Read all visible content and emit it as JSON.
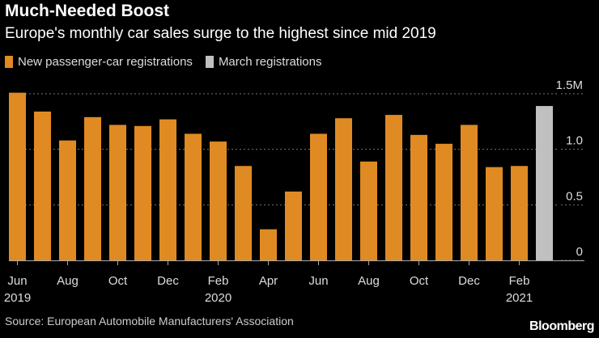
{
  "chart_data": {
    "type": "bar",
    "title": "Much-Needed Boost",
    "subtitle": "Europe's monthly car sales surge to the highest since mid 2019",
    "legend": [
      {
        "label": "New passenger-car registrations",
        "color": "#e08a23"
      },
      {
        "label": "March registrations",
        "color": "#c0c0c0"
      }
    ],
    "categories": [
      "Jun 2019",
      "Jul 2019",
      "Aug 2019",
      "Sep 2019",
      "Oct 2019",
      "Nov 2019",
      "Dec 2019",
      "Jan 2020",
      "Feb 2020",
      "Mar 2020",
      "Apr 2020",
      "May 2020",
      "Jun 2020",
      "Jul 2020",
      "Aug 2020",
      "Sep 2020",
      "Oct 2020",
      "Nov 2020",
      "Dec 2020",
      "Jan 2021",
      "Feb 2021",
      "Mar 2021"
    ],
    "values": [
      1.51,
      1.34,
      1.08,
      1.29,
      1.22,
      1.21,
      1.27,
      1.14,
      1.07,
      0.85,
      0.28,
      0.62,
      1.14,
      1.28,
      0.89,
      1.31,
      1.13,
      1.05,
      1.22,
      0.84,
      0.85,
      1.39
    ],
    "series_index": [
      0,
      0,
      0,
      0,
      0,
      0,
      0,
      0,
      0,
      0,
      0,
      0,
      0,
      0,
      0,
      0,
      0,
      0,
      0,
      0,
      0,
      1
    ],
    "ylim": [
      0,
      1.5
    ],
    "yticks": [
      {
        "value": 0,
        "label": "0"
      },
      {
        "value": 0.5,
        "label": "0.5"
      },
      {
        "value": 1.0,
        "label": "1.0"
      },
      {
        "value": 1.5,
        "label": "1.5M"
      }
    ],
    "xticks": [
      {
        "index": 0,
        "label": "Jun",
        "sub": "2019"
      },
      {
        "index": 2,
        "label": "Aug",
        "sub": ""
      },
      {
        "index": 4,
        "label": "Oct",
        "sub": ""
      },
      {
        "index": 6,
        "label": "Dec",
        "sub": ""
      },
      {
        "index": 8,
        "label": "Feb",
        "sub": "2020"
      },
      {
        "index": 10,
        "label": "Apr",
        "sub": ""
      },
      {
        "index": 12,
        "label": "Jun",
        "sub": ""
      },
      {
        "index": 14,
        "label": "Aug",
        "sub": ""
      },
      {
        "index": 16,
        "label": "Oct",
        "sub": ""
      },
      {
        "index": 18,
        "label": "Dec",
        "sub": ""
      },
      {
        "index": 20,
        "label": "Feb",
        "sub": "2021"
      }
    ],
    "grid": true,
    "xlabel": "",
    "ylabel": ""
  },
  "source": "Source: European Automobile Manufacturers' Association",
  "brand": "Bloomberg"
}
